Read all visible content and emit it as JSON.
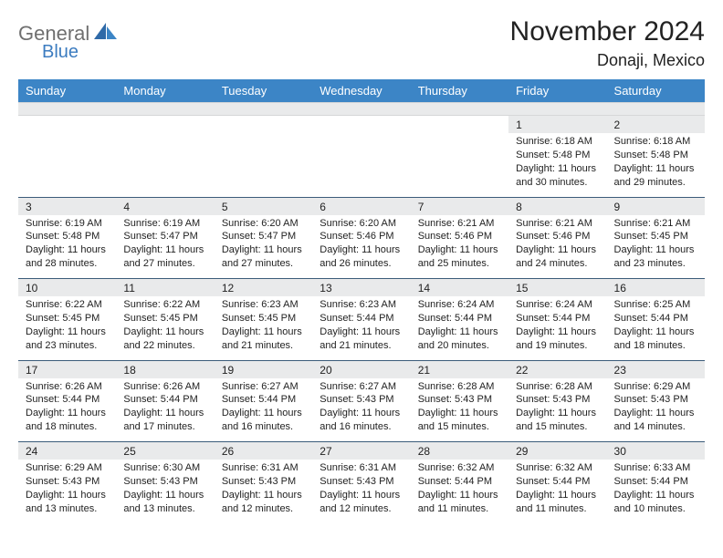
{
  "brand": {
    "general": "General",
    "blue": "Blue"
  },
  "title": {
    "month": "November 2024",
    "location": "Donaji, Mexico"
  },
  "colors": {
    "header_bg": "#3c85c6",
    "header_text": "#ffffff",
    "daynum_bg": "#e9eaeb",
    "rule": "#3b5c7a",
    "logo_gray": "#6f6f6f",
    "logo_blue": "#3c7cc0"
  },
  "typography": {
    "title_fontsize": 30,
    "location_fontsize": 18,
    "dayhead_fontsize": 13,
    "body_fontsize": 11
  },
  "daynames": [
    "Sunday",
    "Monday",
    "Tuesday",
    "Wednesday",
    "Thursday",
    "Friday",
    "Saturday"
  ],
  "weeks": [
    [
      null,
      null,
      null,
      null,
      null,
      {
        "n": "1",
        "sunrise": "Sunrise: 6:18 AM",
        "sunset": "Sunset: 5:48 PM",
        "daylight": "Daylight: 11 hours and 30 minutes."
      },
      {
        "n": "2",
        "sunrise": "Sunrise: 6:18 AM",
        "sunset": "Sunset: 5:48 PM",
        "daylight": "Daylight: 11 hours and 29 minutes."
      }
    ],
    [
      {
        "n": "3",
        "sunrise": "Sunrise: 6:19 AM",
        "sunset": "Sunset: 5:48 PM",
        "daylight": "Daylight: 11 hours and 28 minutes."
      },
      {
        "n": "4",
        "sunrise": "Sunrise: 6:19 AM",
        "sunset": "Sunset: 5:47 PM",
        "daylight": "Daylight: 11 hours and 27 minutes."
      },
      {
        "n": "5",
        "sunrise": "Sunrise: 6:20 AM",
        "sunset": "Sunset: 5:47 PM",
        "daylight": "Daylight: 11 hours and 27 minutes."
      },
      {
        "n": "6",
        "sunrise": "Sunrise: 6:20 AM",
        "sunset": "Sunset: 5:46 PM",
        "daylight": "Daylight: 11 hours and 26 minutes."
      },
      {
        "n": "7",
        "sunrise": "Sunrise: 6:21 AM",
        "sunset": "Sunset: 5:46 PM",
        "daylight": "Daylight: 11 hours and 25 minutes."
      },
      {
        "n": "8",
        "sunrise": "Sunrise: 6:21 AM",
        "sunset": "Sunset: 5:46 PM",
        "daylight": "Daylight: 11 hours and 24 minutes."
      },
      {
        "n": "9",
        "sunrise": "Sunrise: 6:21 AM",
        "sunset": "Sunset: 5:45 PM",
        "daylight": "Daylight: 11 hours and 23 minutes."
      }
    ],
    [
      {
        "n": "10",
        "sunrise": "Sunrise: 6:22 AM",
        "sunset": "Sunset: 5:45 PM",
        "daylight": "Daylight: 11 hours and 23 minutes."
      },
      {
        "n": "11",
        "sunrise": "Sunrise: 6:22 AM",
        "sunset": "Sunset: 5:45 PM",
        "daylight": "Daylight: 11 hours and 22 minutes."
      },
      {
        "n": "12",
        "sunrise": "Sunrise: 6:23 AM",
        "sunset": "Sunset: 5:45 PM",
        "daylight": "Daylight: 11 hours and 21 minutes."
      },
      {
        "n": "13",
        "sunrise": "Sunrise: 6:23 AM",
        "sunset": "Sunset: 5:44 PM",
        "daylight": "Daylight: 11 hours and 21 minutes."
      },
      {
        "n": "14",
        "sunrise": "Sunrise: 6:24 AM",
        "sunset": "Sunset: 5:44 PM",
        "daylight": "Daylight: 11 hours and 20 minutes."
      },
      {
        "n": "15",
        "sunrise": "Sunrise: 6:24 AM",
        "sunset": "Sunset: 5:44 PM",
        "daylight": "Daylight: 11 hours and 19 minutes."
      },
      {
        "n": "16",
        "sunrise": "Sunrise: 6:25 AM",
        "sunset": "Sunset: 5:44 PM",
        "daylight": "Daylight: 11 hours and 18 minutes."
      }
    ],
    [
      {
        "n": "17",
        "sunrise": "Sunrise: 6:26 AM",
        "sunset": "Sunset: 5:44 PM",
        "daylight": "Daylight: 11 hours and 18 minutes."
      },
      {
        "n": "18",
        "sunrise": "Sunrise: 6:26 AM",
        "sunset": "Sunset: 5:44 PM",
        "daylight": "Daylight: 11 hours and 17 minutes."
      },
      {
        "n": "19",
        "sunrise": "Sunrise: 6:27 AM",
        "sunset": "Sunset: 5:44 PM",
        "daylight": "Daylight: 11 hours and 16 minutes."
      },
      {
        "n": "20",
        "sunrise": "Sunrise: 6:27 AM",
        "sunset": "Sunset: 5:43 PM",
        "daylight": "Daylight: 11 hours and 16 minutes."
      },
      {
        "n": "21",
        "sunrise": "Sunrise: 6:28 AM",
        "sunset": "Sunset: 5:43 PM",
        "daylight": "Daylight: 11 hours and 15 minutes."
      },
      {
        "n": "22",
        "sunrise": "Sunrise: 6:28 AM",
        "sunset": "Sunset: 5:43 PM",
        "daylight": "Daylight: 11 hours and 15 minutes."
      },
      {
        "n": "23",
        "sunrise": "Sunrise: 6:29 AM",
        "sunset": "Sunset: 5:43 PM",
        "daylight": "Daylight: 11 hours and 14 minutes."
      }
    ],
    [
      {
        "n": "24",
        "sunrise": "Sunrise: 6:29 AM",
        "sunset": "Sunset: 5:43 PM",
        "daylight": "Daylight: 11 hours and 13 minutes."
      },
      {
        "n": "25",
        "sunrise": "Sunrise: 6:30 AM",
        "sunset": "Sunset: 5:43 PM",
        "daylight": "Daylight: 11 hours and 13 minutes."
      },
      {
        "n": "26",
        "sunrise": "Sunrise: 6:31 AM",
        "sunset": "Sunset: 5:43 PM",
        "daylight": "Daylight: 11 hours and 12 minutes."
      },
      {
        "n": "27",
        "sunrise": "Sunrise: 6:31 AM",
        "sunset": "Sunset: 5:43 PM",
        "daylight": "Daylight: 11 hours and 12 minutes."
      },
      {
        "n": "28",
        "sunrise": "Sunrise: 6:32 AM",
        "sunset": "Sunset: 5:44 PM",
        "daylight": "Daylight: 11 hours and 11 minutes."
      },
      {
        "n": "29",
        "sunrise": "Sunrise: 6:32 AM",
        "sunset": "Sunset: 5:44 PM",
        "daylight": "Daylight: 11 hours and 11 minutes."
      },
      {
        "n": "30",
        "sunrise": "Sunrise: 6:33 AM",
        "sunset": "Sunset: 5:44 PM",
        "daylight": "Daylight: 11 hours and 10 minutes."
      }
    ]
  ]
}
